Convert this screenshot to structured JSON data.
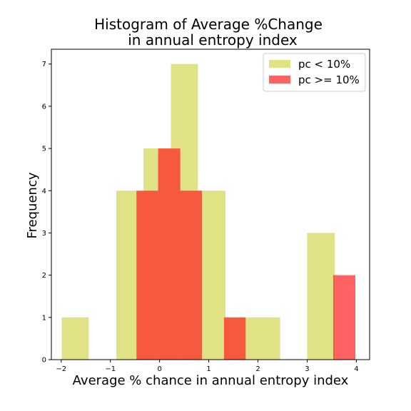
{
  "chart_data": {
    "type": "bar",
    "title_line1": "Histogram of Average %Change",
    "title_line2": "in annual entropy index",
    "xlabel": "Average % chance in annual entropy index",
    "ylabel": "Frequency",
    "xlim": [
      -2.2,
      4.27
    ],
    "ylim": [
      0,
      7.35
    ],
    "xticks": [
      -2,
      -1,
      0,
      1,
      2,
      3,
      4
    ],
    "yticks": [
      0,
      1,
      2,
      3,
      4,
      5,
      6,
      7
    ],
    "legend_position": "top-right",
    "series": [
      {
        "name": "pc < 10%",
        "color": "#d4d451",
        "opacity": 0.7,
        "bins": [
          {
            "x0": -1.99,
            "x1": -1.44,
            "count": 1
          },
          {
            "x0": -1.44,
            "x1": -0.88,
            "count": 0
          },
          {
            "x0": -0.88,
            "x1": -0.33,
            "count": 4
          },
          {
            "x0": -0.33,
            "x1": 0.23,
            "count": 5
          },
          {
            "x0": 0.23,
            "x1": 0.78,
            "count": 7
          },
          {
            "x0": 0.78,
            "x1": 1.34,
            "count": 4
          },
          {
            "x0": 1.34,
            "x1": 1.89,
            "count": 1
          },
          {
            "x0": 1.89,
            "x1": 2.45,
            "count": 1
          },
          {
            "x0": 2.45,
            "x1": 3.0,
            "count": 0
          },
          {
            "x0": 3.0,
            "x1": 3.56,
            "count": 3
          }
        ]
      },
      {
        "name": "pc >= 10%",
        "color": "#ff2020",
        "opacity": 0.7,
        "bins": [
          {
            "x0": -0.47,
            "x1": -0.03,
            "count": 4
          },
          {
            "x0": -0.03,
            "x1": 0.42,
            "count": 5
          },
          {
            "x0": 0.42,
            "x1": 0.86,
            "count": 4
          },
          {
            "x0": 0.86,
            "x1": 1.31,
            "count": 0
          },
          {
            "x0": 1.31,
            "x1": 1.75,
            "count": 1
          },
          {
            "x0": 1.75,
            "x1": 2.2,
            "count": 0
          },
          {
            "x0": 2.2,
            "x1": 2.64,
            "count": 0
          },
          {
            "x0": 2.64,
            "x1": 3.09,
            "count": 0
          },
          {
            "x0": 3.09,
            "x1": 3.53,
            "count": 0
          },
          {
            "x0": 3.53,
            "x1": 3.98,
            "count": 2
          }
        ]
      }
    ]
  }
}
